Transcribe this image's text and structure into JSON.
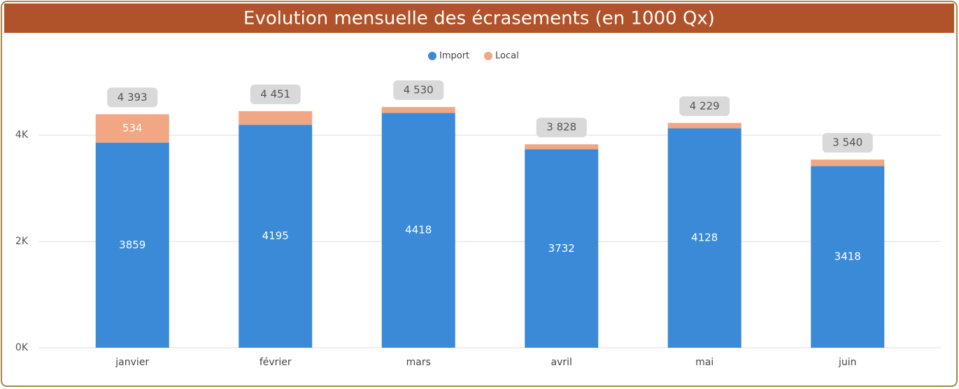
{
  "chart_data": {
    "type": "stacked_bar",
    "title": "Evolution mensuelle des écrasements (en 1000 Qx)",
    "categories": [
      "janvier",
      "février",
      "mars",
      "avril",
      "mai",
      "juin"
    ],
    "series": [
      {
        "name": "Import",
        "color": "#3a8ad8",
        "values": [
          3859,
          4195,
          4418,
          3732,
          4128,
          3418
        ]
      },
      {
        "name": "Local",
        "color": "#f1a684",
        "values": [
          534,
          256,
          112,
          96,
          101,
          122
        ],
        "value_labels": [
          "534",
          null,
          null,
          null,
          null,
          null
        ]
      }
    ],
    "totals": [
      4393,
      4451,
      4530,
      3828,
      4229,
      3540
    ],
    "total_labels": [
      "4 393",
      "4 451",
      "4 530",
      "3 828",
      "4 229",
      "3 540"
    ],
    "ylim": [
      0,
      5200
    ],
    "yticks": [
      {
        "value": 0,
        "label": "0K"
      },
      {
        "value": 2000,
        "label": "2K"
      },
      {
        "value": 4000,
        "label": "4K"
      }
    ],
    "grid": true,
    "legend": "top"
  }
}
